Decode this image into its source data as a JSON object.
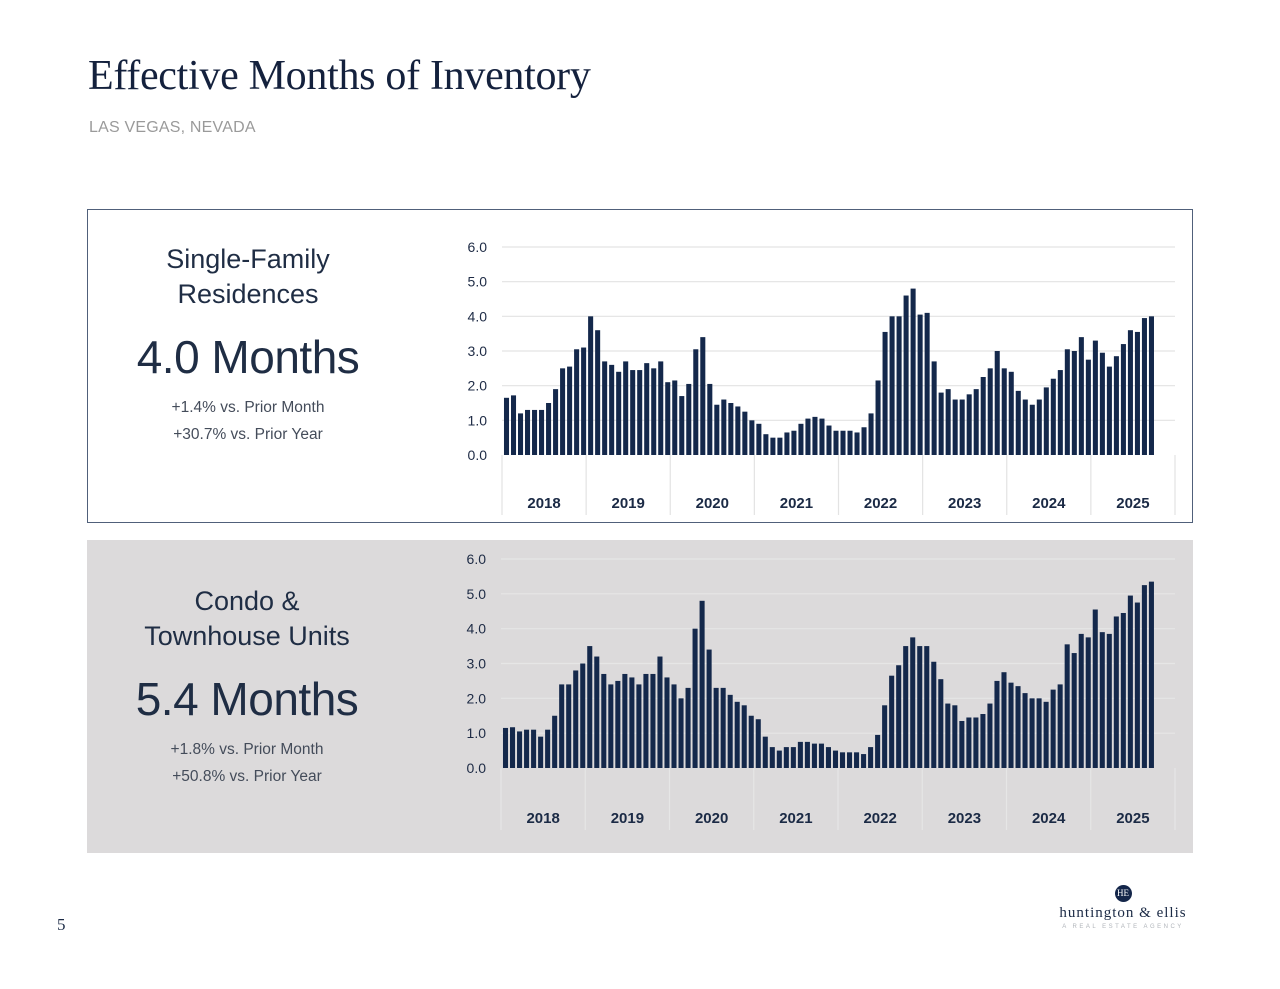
{
  "header": {
    "title": "Effective Months of Inventory",
    "subtitle": "LAS VEGAS, NEVADA"
  },
  "panels": [
    {
      "category_line1": "Single-Family",
      "category_line2": "Residences",
      "headline": "4.0 Months",
      "change_month": "+1.4% vs. Prior Month",
      "change_year": "+30.7%  vs. Prior Year"
    },
    {
      "category_line1": "Condo &",
      "category_line2": "Townhouse Units",
      "headline": "5.4 Months",
      "change_month": "+1.8% vs. Prior Month",
      "change_year": "+50.8% vs. Prior Year"
    }
  ],
  "footer": {
    "page_number": "5",
    "brand_monogram": "HE",
    "brand_name": "huntington & ellis",
    "brand_tagline": "A REAL ESTATE AGENCY"
  },
  "colors": {
    "bar": "#14284b",
    "title": "#14213d",
    "grid": "#e2e2e2"
  },
  "chart_data": [
    {
      "type": "bar",
      "title": "Single-Family Residences",
      "xlabel": "",
      "ylabel": "",
      "ylim": [
        0,
        6
      ],
      "yticks": [
        "0.0",
        "1.0",
        "2.0",
        "3.0",
        "4.0",
        "5.0",
        "6.0"
      ],
      "categories": [
        "2018",
        "2019",
        "2020",
        "2021",
        "2022",
        "2023",
        "2024",
        "2025"
      ],
      "grid": true,
      "values": [
        1.65,
        1.72,
        1.2,
        1.3,
        1.3,
        1.3,
        1.5,
        1.9,
        2.5,
        2.55,
        3.05,
        3.1,
        4.0,
        3.6,
        2.7,
        2.6,
        2.4,
        2.7,
        2.45,
        2.45,
        2.65,
        2.5,
        2.7,
        2.1,
        2.15,
        1.7,
        2.05,
        3.05,
        3.4,
        2.05,
        1.45,
        1.6,
        1.5,
        1.4,
        1.25,
        1.0,
        0.9,
        0.6,
        0.5,
        0.5,
        0.65,
        0.7,
        0.9,
        1.05,
        1.1,
        1.05,
        0.85,
        0.7,
        0.7,
        0.7,
        0.65,
        0.8,
        1.2,
        2.15,
        3.55,
        4.0,
        4.0,
        4.6,
        4.8,
        4.05,
        4.1,
        2.7,
        1.8,
        1.9,
        1.6,
        1.6,
        1.75,
        1.9,
        2.25,
        2.5,
        3.0,
        2.5,
        2.4,
        1.85,
        1.6,
        1.45,
        1.6,
        1.95,
        2.2,
        2.45,
        3.05,
        3.0,
        3.4,
        2.75,
        3.3,
        2.95,
        2.55,
        2.85,
        3.2,
        3.6,
        3.55,
        3.95,
        4.0
      ]
    },
    {
      "type": "bar",
      "title": "Condo & Townhouse Units",
      "xlabel": "",
      "ylabel": "",
      "ylim": [
        0,
        6
      ],
      "yticks": [
        "0.0",
        "1.0",
        "2.0",
        "3.0",
        "4.0",
        "5.0",
        "6.0"
      ],
      "categories": [
        "2018",
        "2019",
        "2020",
        "2021",
        "2022",
        "2023",
        "2024",
        "2025"
      ],
      "grid": true,
      "values": [
        1.15,
        1.17,
        1.05,
        1.1,
        1.1,
        0.9,
        1.1,
        1.5,
        2.4,
        2.4,
        2.8,
        3.0,
        3.5,
        3.2,
        2.7,
        2.4,
        2.5,
        2.7,
        2.6,
        2.4,
        2.7,
        2.7,
        3.2,
        2.6,
        2.4,
        2.0,
        2.3,
        4.0,
        4.8,
        3.4,
        2.3,
        2.3,
        2.1,
        1.9,
        1.8,
        1.5,
        1.4,
        0.9,
        0.6,
        0.5,
        0.6,
        0.6,
        0.75,
        0.75,
        0.7,
        0.7,
        0.6,
        0.5,
        0.45,
        0.45,
        0.45,
        0.4,
        0.6,
        0.95,
        1.8,
        2.65,
        2.95,
        3.5,
        3.75,
        3.5,
        3.5,
        3.05,
        2.55,
        1.85,
        1.8,
        1.35,
        1.45,
        1.45,
        1.55,
        1.85,
        2.5,
        2.75,
        2.45,
        2.35,
        2.15,
        2.0,
        2.0,
        1.9,
        2.25,
        2.4,
        3.55,
        3.3,
        3.85,
        3.75,
        4.55,
        3.9,
        3.85,
        4.35,
        4.45,
        4.95,
        4.75,
        5.25,
        5.35
      ]
    }
  ]
}
